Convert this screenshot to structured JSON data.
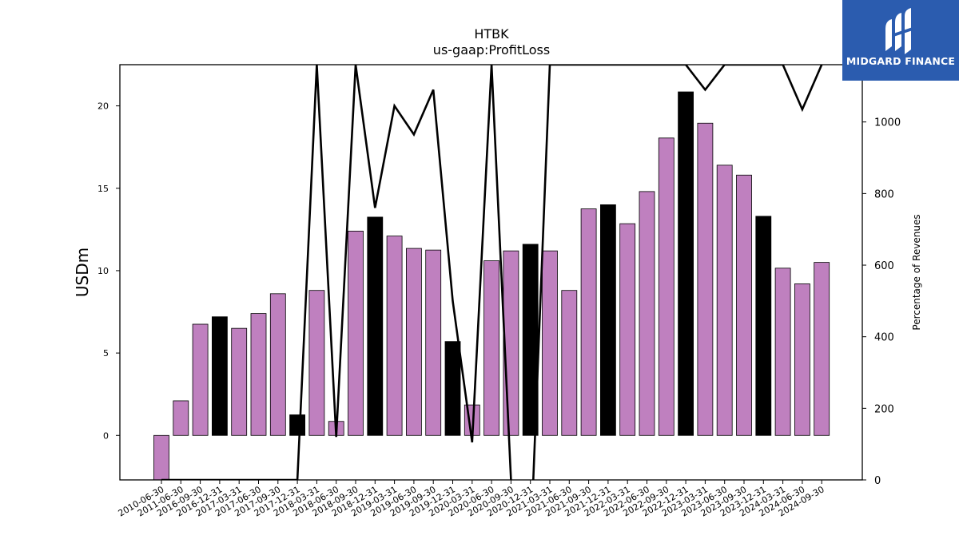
{
  "chart_data": {
    "type": "bar+line",
    "title": "HTBK",
    "subtitle": "us-gaap:ProfitLoss",
    "ylabel_left": "USDm",
    "ylabel_right": "Percentage of Revenues",
    "ylim_left": [
      -2.7,
      22.5
    ],
    "ylim_right": [
      0,
      1160
    ],
    "yticks_left": [
      0,
      5,
      10,
      15,
      20
    ],
    "yticks_right": [
      0,
      200,
      400,
      600,
      800,
      1000
    ],
    "categories": [
      "2010-06-30",
      "2011-06-30",
      "2016-09-30",
      "2016-12-31",
      "2017-03-31",
      "2017-06-30",
      "2017-09-30",
      "2017-12-31",
      "2018-03-31",
      "2018-06-30",
      "2018-09-30",
      "2018-12-31",
      "2019-03-31",
      "2019-06-30",
      "2019-09-30",
      "2019-12-31",
      "2020-03-31",
      "2020-06-30",
      "2020-09-30",
      "2020-12-31",
      "2021-03-31",
      "2021-06-30",
      "2021-09-30",
      "2021-12-31",
      "2022-03-31",
      "2022-06-30",
      "2022-09-30",
      "2022-12-31",
      "2023-03-31",
      "2023-06-30",
      "2023-09-30",
      "2023-12-31",
      "2024-03-31",
      "2024-06-30",
      "2024-09-30"
    ],
    "series": [
      {
        "type": "bar",
        "values": [
          -2.7,
          2.1,
          6.75,
          7.2,
          6.5,
          7.4,
          8.6,
          1.25,
          8.8,
          0.85,
          12.4,
          13.25,
          12.1,
          11.35,
          11.25,
          5.7,
          1.85,
          10.6,
          11.2,
          11.6,
          11.2,
          8.8,
          13.75,
          14.0,
          12.85,
          14.8,
          18.05,
          20.85,
          18.95,
          16.4,
          15.8,
          13.3,
          10.15,
          9.2,
          10.5
        ],
        "highlight": [
          false,
          false,
          false,
          true,
          false,
          false,
          false,
          true,
          false,
          false,
          false,
          true,
          false,
          false,
          false,
          true,
          false,
          false,
          false,
          true,
          false,
          false,
          false,
          true,
          false,
          false,
          false,
          true,
          false,
          false,
          false,
          true,
          false,
          false,
          false
        ]
      },
      {
        "type": "line",
        "axis": "right",
        "values": [
          0,
          0,
          0,
          0,
          0,
          0,
          0,
          0,
          1160,
          120,
          1160,
          760,
          1045,
          965,
          1090,
          500,
          105,
          1160,
          0,
          null,
          1160,
          1160,
          1160,
          1160,
          1160,
          1160,
          1160,
          1160,
          1090,
          1160,
          1160,
          1160,
          1160,
          1035,
          1160
        ]
      }
    ],
    "colors": {
      "bar": "#bf80bf",
      "bar_highlight": "#000000",
      "line": "#000000"
    }
  },
  "logo": {
    "text": "MIDGARD FINANCE",
    "bg": "#2b5caf"
  }
}
